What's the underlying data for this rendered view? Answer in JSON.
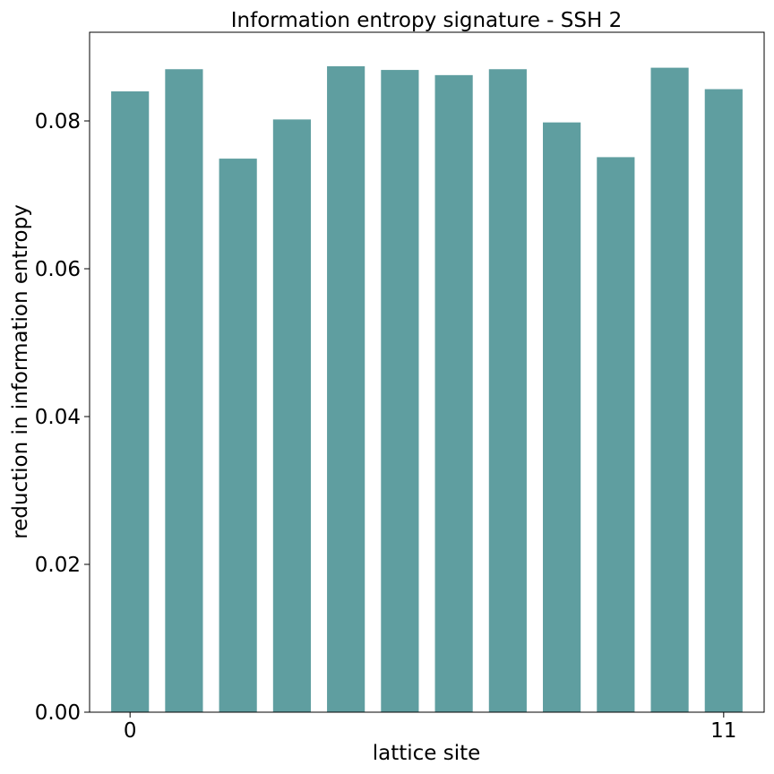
{
  "chart_data": {
    "type": "bar",
    "title": "Information entropy signature - SSH 2",
    "xlabel": "lattice site",
    "ylabel": "reduction in information entropy",
    "categories": [
      0,
      1,
      2,
      3,
      4,
      5,
      6,
      7,
      8,
      9,
      10,
      11
    ],
    "x_tick_labels": [
      "0",
      "11"
    ],
    "values": [
      0.084,
      0.087,
      0.0749,
      0.0802,
      0.0874,
      0.0869,
      0.0862,
      0.087,
      0.0798,
      0.0751,
      0.0872,
      0.0843
    ],
    "ylim": [
      0,
      0.092
    ],
    "xlim": [
      -0.75,
      11.75
    ],
    "y_ticks": [
      0.0,
      0.02,
      0.04,
      0.06,
      0.08
    ],
    "y_tick_labels": [
      "0.00",
      "0.02",
      "0.04",
      "0.06",
      "0.08"
    ],
    "bar_color": "#5f9ea0",
    "grid": false,
    "legend": "none"
  }
}
